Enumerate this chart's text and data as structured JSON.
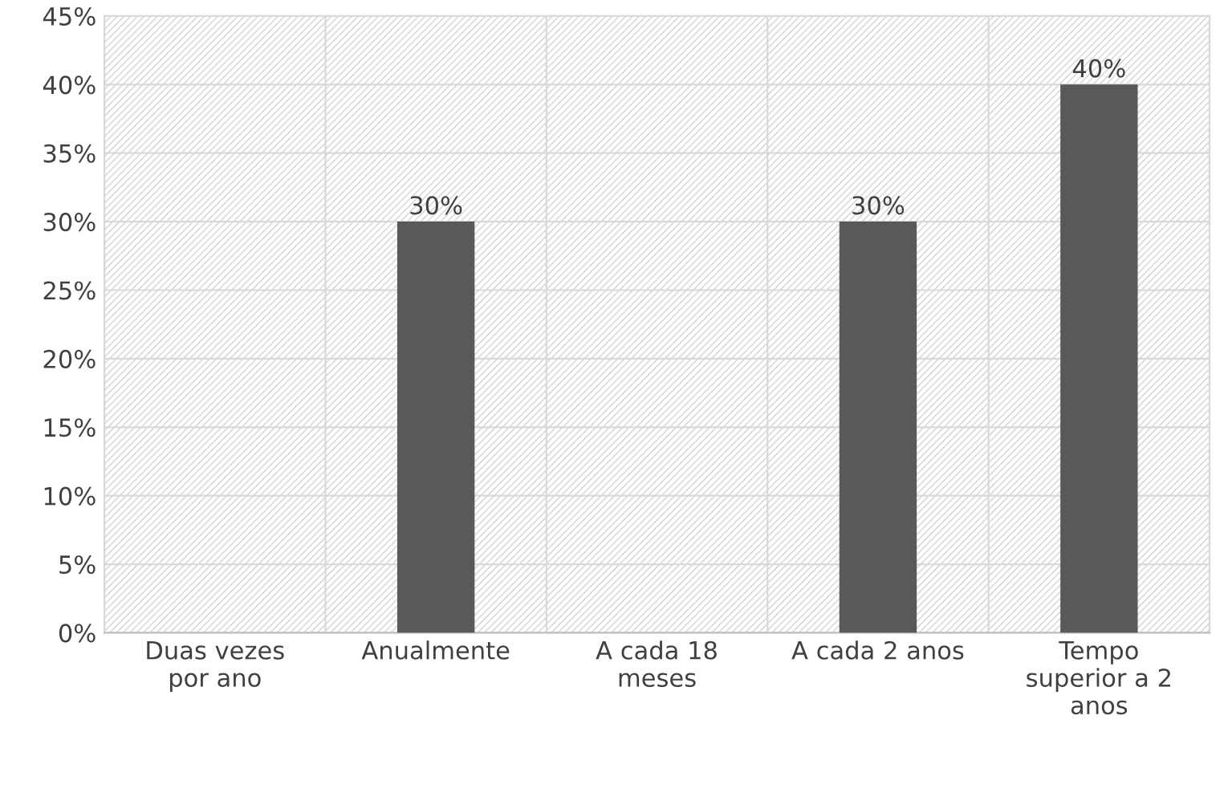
{
  "chart_data": {
    "type": "bar",
    "categories": [
      "Duas vezes\npor ano",
      "Anualmente",
      "A cada 18\nmeses",
      "A cada 2 anos",
      "Tempo\nsuperior a 2\nanos"
    ],
    "values": [
      0,
      30,
      0,
      30,
      40
    ],
    "value_labels": [
      null,
      "30%",
      null,
      "30%",
      "40%"
    ],
    "color": "#595959",
    "ylim": [
      0,
      45
    ],
    "yticks": [
      {
        "value": 0,
        "label": "0%"
      },
      {
        "value": 5,
        "label": "5%"
      },
      {
        "value": 10,
        "label": "10%"
      },
      {
        "value": 15,
        "label": "15%"
      },
      {
        "value": 20,
        "label": "20%"
      },
      {
        "value": 25,
        "label": "25%"
      },
      {
        "value": 30,
        "label": "30%"
      },
      {
        "value": 35,
        "label": "35%"
      },
      {
        "value": 40,
        "label": "40%"
      },
      {
        "value": 45,
        "label": "45%"
      }
    ],
    "grid": true
  }
}
